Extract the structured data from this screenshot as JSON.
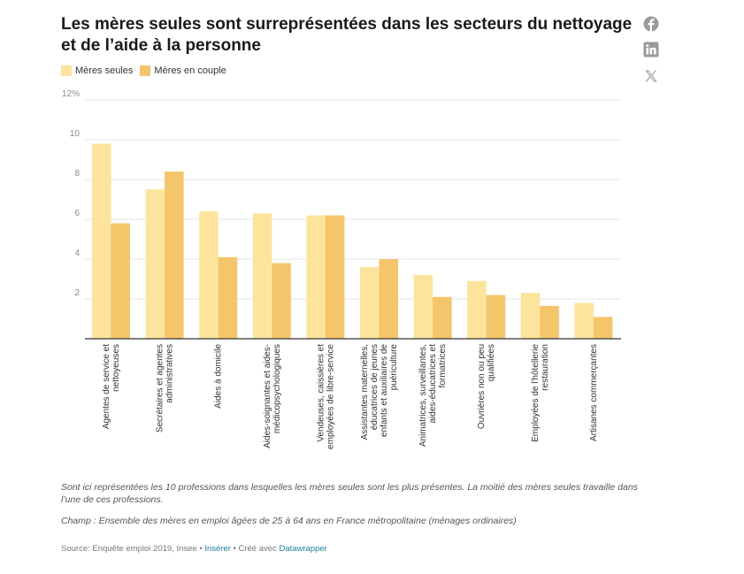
{
  "title": "Les mères seules sont surreprésentées dans les secteurs du nettoyage et de l’aide à la personne",
  "legend": [
    {
      "label": "Mères seules",
      "color": "#fce49c"
    },
    {
      "label": "Mères en couple",
      "color": "#f5c56a"
    }
  ],
  "share_icons": [
    "facebook-icon",
    "linkedin-icon",
    "x-icon"
  ],
  "chart_data": {
    "type": "bar",
    "y_ticks": [
      "12%",
      "10",
      "8",
      "6",
      "4",
      "2"
    ],
    "ylim": [
      0,
      12
    ],
    "grid": true,
    "legend_position": "top-left",
    "categories": [
      [
        "Agentes de service et",
        "nettoyeuses"
      ],
      [
        "Secrétaires et agentes",
        "administratives"
      ],
      [
        "Aides à domicile"
      ],
      [
        "Aides-soignantes et aides-",
        "médicopsychologiques"
      ],
      [
        "Vendeuses, caissières et",
        "employées de libre-service"
      ],
      [
        "Assistantes maternelles,",
        "éducatrices de jeunes",
        "enfants et auxiliaires de",
        "puériculture"
      ],
      [
        "Animatrices, surveillantes,",
        "aides-éducatrices et",
        "formatrices"
      ],
      [
        "Ouvrières non ou peu",
        "qualifiées"
      ],
      [
        "Employées de l'hôtellerie",
        "restauration"
      ],
      [
        "Artisanes commerçantes"
      ]
    ],
    "series": [
      {
        "name": "Mères seules",
        "color": "#fce49c",
        "values": [
          9.8,
          7.5,
          6.4,
          6.3,
          6.2,
          3.6,
          3.2,
          2.9,
          2.3,
          1.8
        ]
      },
      {
        "name": "Mères en couple",
        "color": "#f5c56a",
        "values": [
          5.8,
          8.4,
          4.1,
          3.8,
          6.2,
          4.0,
          2.1,
          2.2,
          1.65,
          1.1
        ]
      }
    ]
  },
  "notes": [
    "Sont ici représentées les 10 professions dans lesquelles les mères seules sont les plus présentes. La moitié des mères seules travaille dans l’une de ces professions.",
    "Champ : Ensemble des mères en emploi âgées de 25 à 64 ans en France métropolitaine (ménages ordinaires)"
  ],
  "source": {
    "text": "Source: Enquête emploi 2019, Insee",
    "separator": " • ",
    "insert_link": "Insérer",
    "created_with": "Créé avec",
    "datawrapper_link": "Datawrapper"
  }
}
